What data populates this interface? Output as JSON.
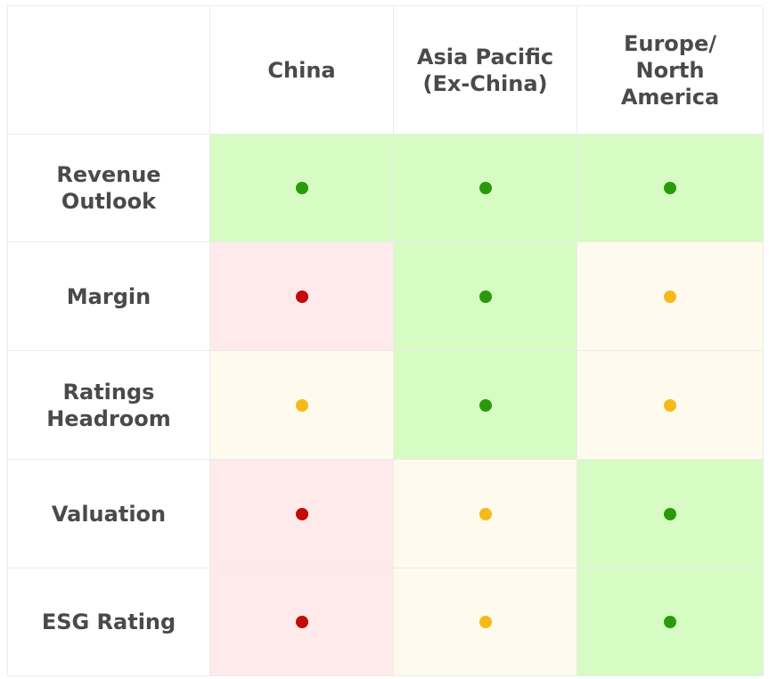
{
  "chart_data": {
    "type": "table",
    "columns": [
      "China",
      "Asia Pacific\n(Ex-China)",
      "Europe/\nNorth\nAmerica"
    ],
    "rows": [
      {
        "label": "Revenue\nOutlook",
        "values": [
          "green",
          "green",
          "green"
        ]
      },
      {
        "label": "Margin",
        "values": [
          "red",
          "green",
          "amber"
        ]
      },
      {
        "label": "Ratings\nHeadroom",
        "values": [
          "amber",
          "green",
          "amber"
        ]
      },
      {
        "label": "Valuation",
        "values": [
          "red",
          "amber",
          "green"
        ]
      },
      {
        "label": "ESG Rating",
        "values": [
          "red",
          "amber",
          "green"
        ]
      }
    ]
  },
  "colors": {
    "green": {
      "dot": "#2a9a0c",
      "bg": "#d6fcc4"
    },
    "red": {
      "dot": "#c40a0a",
      "bg": "#feeaea"
    },
    "amber": {
      "dot": "#f6b91a",
      "bg": "#fefaee"
    }
  }
}
